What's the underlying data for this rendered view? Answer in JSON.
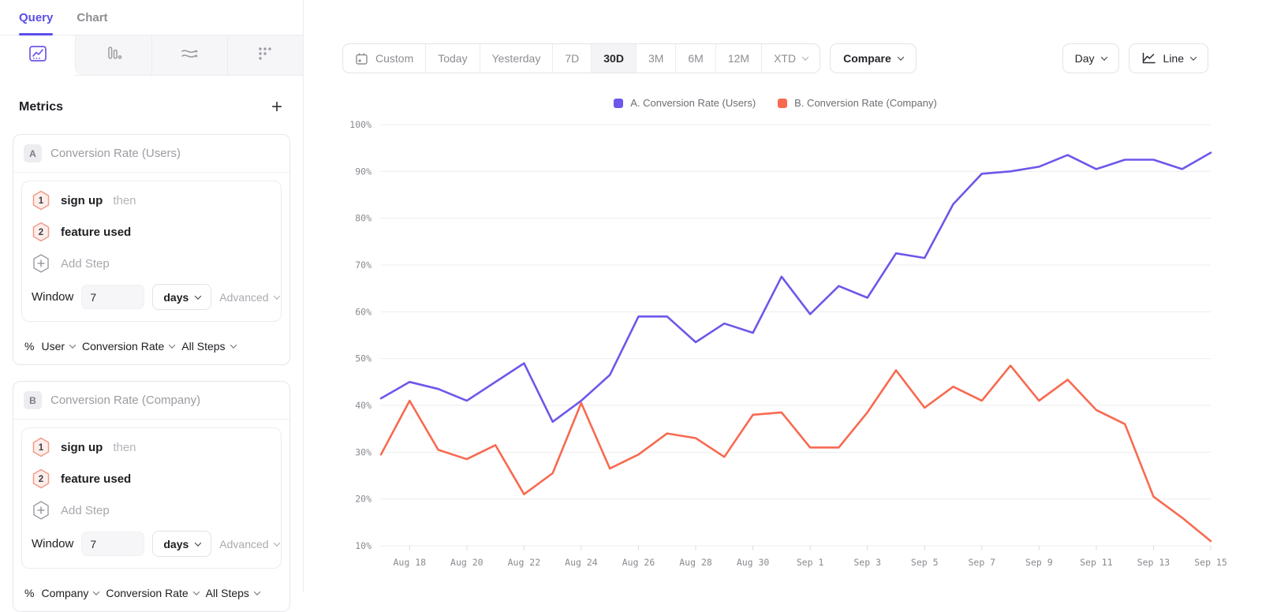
{
  "colors": {
    "accent_purple": "#5B4EE9",
    "series_a": "#6C58EA",
    "series_b": "#F86A50"
  },
  "sidebar": {
    "tabs": [
      {
        "label": "Query"
      },
      {
        "label": "Chart"
      }
    ],
    "chart_type_icons": [
      "line-chart-icon",
      "bar-chart-icon",
      "flow-chart-icon",
      "dot-grid-icon"
    ],
    "metrics_title": "Metrics",
    "add_metric_label": "+",
    "metric_cards": [
      {
        "badge": "A",
        "title": "Conversion Rate (Users)",
        "steps": [
          {
            "num": "1",
            "event": "sign up",
            "connector": "then"
          },
          {
            "num": "2",
            "event": "feature used",
            "connector": ""
          }
        ],
        "add_step_label": "Add Step",
        "window_label": "Window",
        "window_value": "7",
        "window_unit": "days",
        "advanced_label": "Advanced",
        "measure_prefix": "%",
        "measure_entity": "User",
        "measure_metric": "Conversion Rate",
        "measure_scope": "All Steps"
      },
      {
        "badge": "B",
        "title": "Conversion Rate (Company)",
        "steps": [
          {
            "num": "1",
            "event": "sign up",
            "connector": "then"
          },
          {
            "num": "2",
            "event": "feature used",
            "connector": ""
          }
        ],
        "add_step_label": "Add Step",
        "window_label": "Window",
        "window_value": "7",
        "window_unit": "days",
        "advanced_label": "Advanced",
        "measure_prefix": "%",
        "measure_entity": "Company",
        "measure_metric": "Conversion Rate",
        "measure_scope": "All Steps"
      }
    ]
  },
  "toolbar": {
    "date_ranges": [
      "Custom",
      "Today",
      "Yesterday",
      "7D",
      "30D",
      "3M",
      "6M",
      "12M",
      "XTD"
    ],
    "active_range": "30D",
    "compare_label": "Compare",
    "granularity_label": "Day",
    "chart_style_label": "Line"
  },
  "legend": {
    "items": [
      {
        "label": "A. Conversion Rate (Users)",
        "color": "#6C58EA"
      },
      {
        "label": "B. Conversion Rate (Company)",
        "color": "#F86A50"
      }
    ]
  },
  "chart_data": {
    "type": "line",
    "title": "",
    "xlabel": "",
    "ylabel": "",
    "x": [
      "Aug 17",
      "Aug 18",
      "Aug 19",
      "Aug 20",
      "Aug 21",
      "Aug 22",
      "Aug 23",
      "Aug 24",
      "Aug 25",
      "Aug 26",
      "Aug 27",
      "Aug 28",
      "Aug 29",
      "Aug 30",
      "Aug 31",
      "Sep 1",
      "Sep 2",
      "Sep 3",
      "Sep 4",
      "Sep 5",
      "Sep 6",
      "Sep 7",
      "Sep 8",
      "Sep 9",
      "Sep 10",
      "Sep 11",
      "Sep 12",
      "Sep 13",
      "Sep 14",
      "Sep 15"
    ],
    "tick_start_index": 1,
    "tick_every": 2,
    "ylim": [
      10,
      100
    ],
    "y_tick_step": 10,
    "y_suffix": "%",
    "grid": "horizontal",
    "legend_position": "top-center",
    "series": [
      {
        "name": "A. Conversion Rate (Users)",
        "color": "#6C58EA",
        "values": [
          41.5,
          45,
          43.5,
          41,
          45,
          49,
          36.5,
          41,
          46.5,
          59,
          59,
          53.5,
          57.5,
          55.5,
          67.5,
          59.5,
          65.5,
          63,
          72.5,
          71.5,
          83,
          89.5,
          90,
          91,
          93.5,
          90.5,
          92.5,
          92.5,
          90.5,
          94
        ]
      },
      {
        "name": "B. Conversion Rate (Company)",
        "color": "#F86A50",
        "values": [
          29.5,
          41,
          30.5,
          28.5,
          31.5,
          21,
          25.5,
          40.5,
          26.5,
          29.5,
          34,
          33,
          29,
          38,
          38.5,
          31,
          31,
          38.5,
          47.5,
          39.5,
          44,
          41,
          48.5,
          41,
          45.5,
          39,
          36,
          20.5,
          16,
          11
        ]
      }
    ]
  }
}
